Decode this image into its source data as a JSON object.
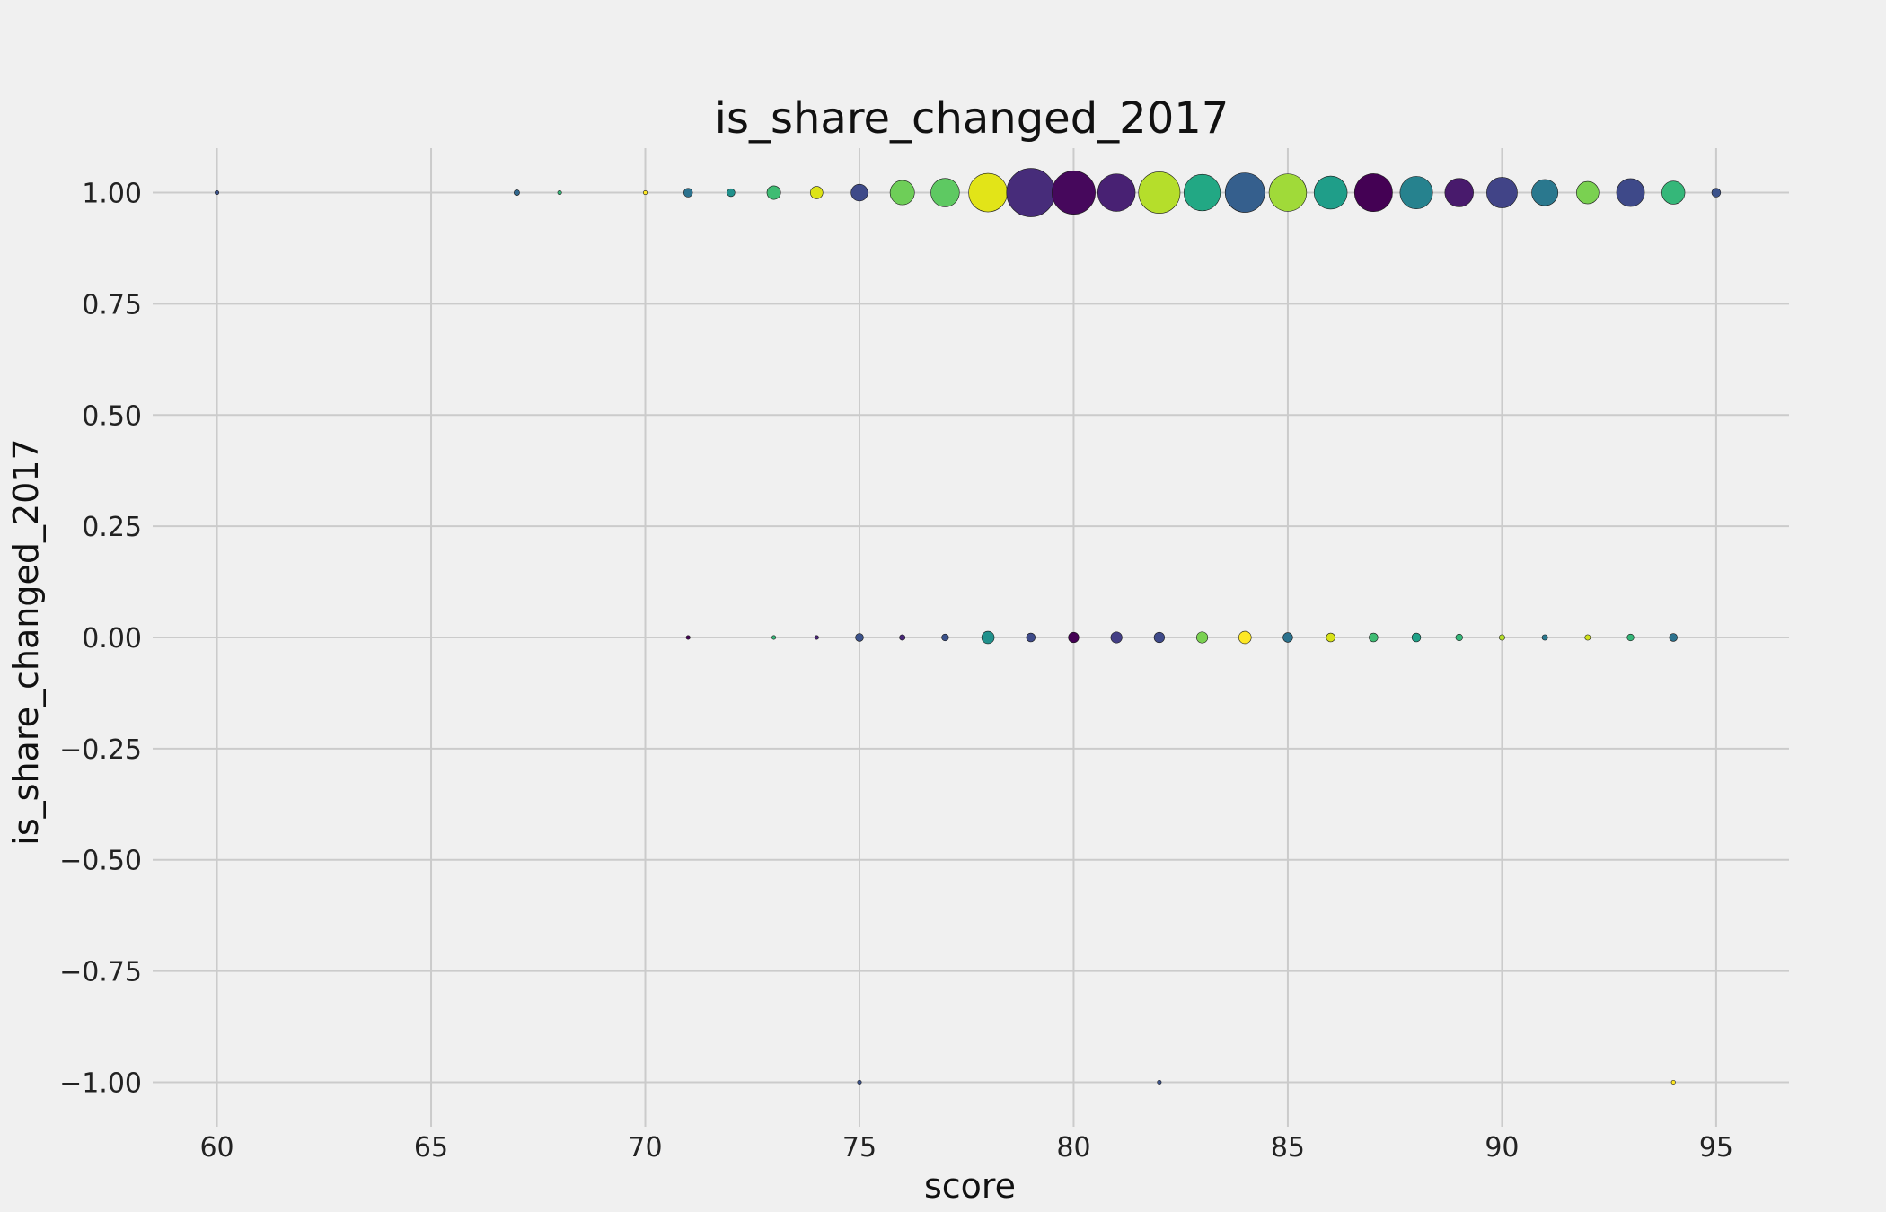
{
  "chart_data": {
    "type": "scatter",
    "title": "is_share_changed_2017",
    "xlabel": "score",
    "ylabel": "is_share_changed_2017",
    "xlim": [
      58.5,
      96.7
    ],
    "ylim": [
      -1.1,
      1.1
    ],
    "x_ticks": [
      60,
      65,
      70,
      75,
      80,
      85,
      90,
      95
    ],
    "x_tick_labels": [
      "60",
      "65",
      "70",
      "75",
      "80",
      "85",
      "90",
      "95"
    ],
    "y_ticks": [
      1.0,
      0.75,
      0.5,
      0.25,
      0.0,
      -0.25,
      -0.5,
      -0.75,
      -1.0
    ],
    "y_tick_labels": [
      "1.00",
      "0.75",
      "0.50",
      "0.25",
      "0.00",
      "−0.25",
      "−0.50",
      "−0.75",
      "−1.00"
    ],
    "grid": true,
    "size_encoding": "bubble area ~ count of observations",
    "points": [
      {
        "x": 60,
        "y": 1,
        "count": 1,
        "color": "#3b528b"
      },
      {
        "x": 67,
        "y": 1,
        "count": 2,
        "color": "#31688e"
      },
      {
        "x": 68,
        "y": 1,
        "count": 1,
        "color": "#35b779"
      },
      {
        "x": 70,
        "y": 1,
        "count": 1,
        "color": "#fde725"
      },
      {
        "x": 71,
        "y": 1,
        "count": 5,
        "color": "#2c728e"
      },
      {
        "x": 72,
        "y": 1,
        "count": 4,
        "color": "#21918c"
      },
      {
        "x": 73,
        "y": 1,
        "count": 12,
        "color": "#3fbc73"
      },
      {
        "x": 74,
        "y": 1,
        "count": 10,
        "color": "#dde318"
      },
      {
        "x": 75,
        "y": 1,
        "count": 18,
        "color": "#3e4a89"
      },
      {
        "x": 76,
        "y": 1,
        "count": 38,
        "color": "#6ece58"
      },
      {
        "x": 77,
        "y": 1,
        "count": 52,
        "color": "#5ec962"
      },
      {
        "x": 78,
        "y": 1,
        "count": 95,
        "color": "#e2e418"
      },
      {
        "x": 79,
        "y": 1,
        "count": 150,
        "color": "#472c7a"
      },
      {
        "x": 80,
        "y": 1,
        "count": 120,
        "color": "#46085c"
      },
      {
        "x": 81,
        "y": 1,
        "count": 90,
        "color": "#482173"
      },
      {
        "x": 82,
        "y": 1,
        "count": 110,
        "color": "#b5de2b"
      },
      {
        "x": 83,
        "y": 1,
        "count": 85,
        "color": "#22a884"
      },
      {
        "x": 84,
        "y": 1,
        "count": 100,
        "color": "#355f8d"
      },
      {
        "x": 85,
        "y": 1,
        "count": 90,
        "color": "#a0da39"
      },
      {
        "x": 86,
        "y": 1,
        "count": 70,
        "color": "#1f9e89"
      },
      {
        "x": 87,
        "y": 1,
        "count": 92,
        "color": "#440154"
      },
      {
        "x": 88,
        "y": 1,
        "count": 68,
        "color": "#26828e"
      },
      {
        "x": 89,
        "y": 1,
        "count": 52,
        "color": "#481a6c"
      },
      {
        "x": 90,
        "y": 1,
        "count": 60,
        "color": "#414487"
      },
      {
        "x": 91,
        "y": 1,
        "count": 44,
        "color": "#2a788e"
      },
      {
        "x": 92,
        "y": 1,
        "count": 32,
        "color": "#7ad151"
      },
      {
        "x": 93,
        "y": 1,
        "count": 50,
        "color": "#3e4989"
      },
      {
        "x": 94,
        "y": 1,
        "count": 34,
        "color": "#35b779"
      },
      {
        "x": 95,
        "y": 1,
        "count": 5,
        "color": "#3b528b"
      },
      {
        "x": 71,
        "y": 0,
        "count": 1,
        "color": "#440154"
      },
      {
        "x": 73,
        "y": 0,
        "count": 1,
        "color": "#35b779"
      },
      {
        "x": 74,
        "y": 0,
        "count": 1,
        "color": "#482475"
      },
      {
        "x": 75,
        "y": 0,
        "count": 4,
        "color": "#3b528b"
      },
      {
        "x": 76,
        "y": 0,
        "count": 2,
        "color": "#482878"
      },
      {
        "x": 77,
        "y": 0,
        "count": 3,
        "color": "#3b528b"
      },
      {
        "x": 78,
        "y": 0,
        "count": 10,
        "color": "#21918c"
      },
      {
        "x": 79,
        "y": 0,
        "count": 5,
        "color": "#3e4a89"
      },
      {
        "x": 80,
        "y": 0,
        "count": 7,
        "color": "#440154"
      },
      {
        "x": 81,
        "y": 0,
        "count": 8,
        "color": "#433e85"
      },
      {
        "x": 82,
        "y": 0,
        "count": 7,
        "color": "#3e4989"
      },
      {
        "x": 83,
        "y": 0,
        "count": 8,
        "color": "#7ad151"
      },
      {
        "x": 84,
        "y": 0,
        "count": 10,
        "color": "#fde725"
      },
      {
        "x": 85,
        "y": 0,
        "count": 6,
        "color": "#2c728e"
      },
      {
        "x": 86,
        "y": 0,
        "count": 5,
        "color": "#d8e219"
      },
      {
        "x": 87,
        "y": 0,
        "count": 5,
        "color": "#3fbc73"
      },
      {
        "x": 88,
        "y": 0,
        "count": 5,
        "color": "#1fa188"
      },
      {
        "x": 89,
        "y": 0,
        "count": 3,
        "color": "#35b779"
      },
      {
        "x": 90,
        "y": 0,
        "count": 2,
        "color": "#b5de2b"
      },
      {
        "x": 91,
        "y": 0,
        "count": 2,
        "color": "#2a788e"
      },
      {
        "x": 92,
        "y": 0,
        "count": 2,
        "color": "#d0e11c"
      },
      {
        "x": 93,
        "y": 0,
        "count": 3,
        "color": "#35b779"
      },
      {
        "x": 94,
        "y": 0,
        "count": 4,
        "color": "#2c728e"
      },
      {
        "x": 75,
        "y": -1,
        "count": 1,
        "color": "#3b528b"
      },
      {
        "x": 82,
        "y": -1,
        "count": 1,
        "color": "#3b528b"
      },
      {
        "x": 94,
        "y": -1,
        "count": 1,
        "color": "#fde725"
      }
    ]
  }
}
